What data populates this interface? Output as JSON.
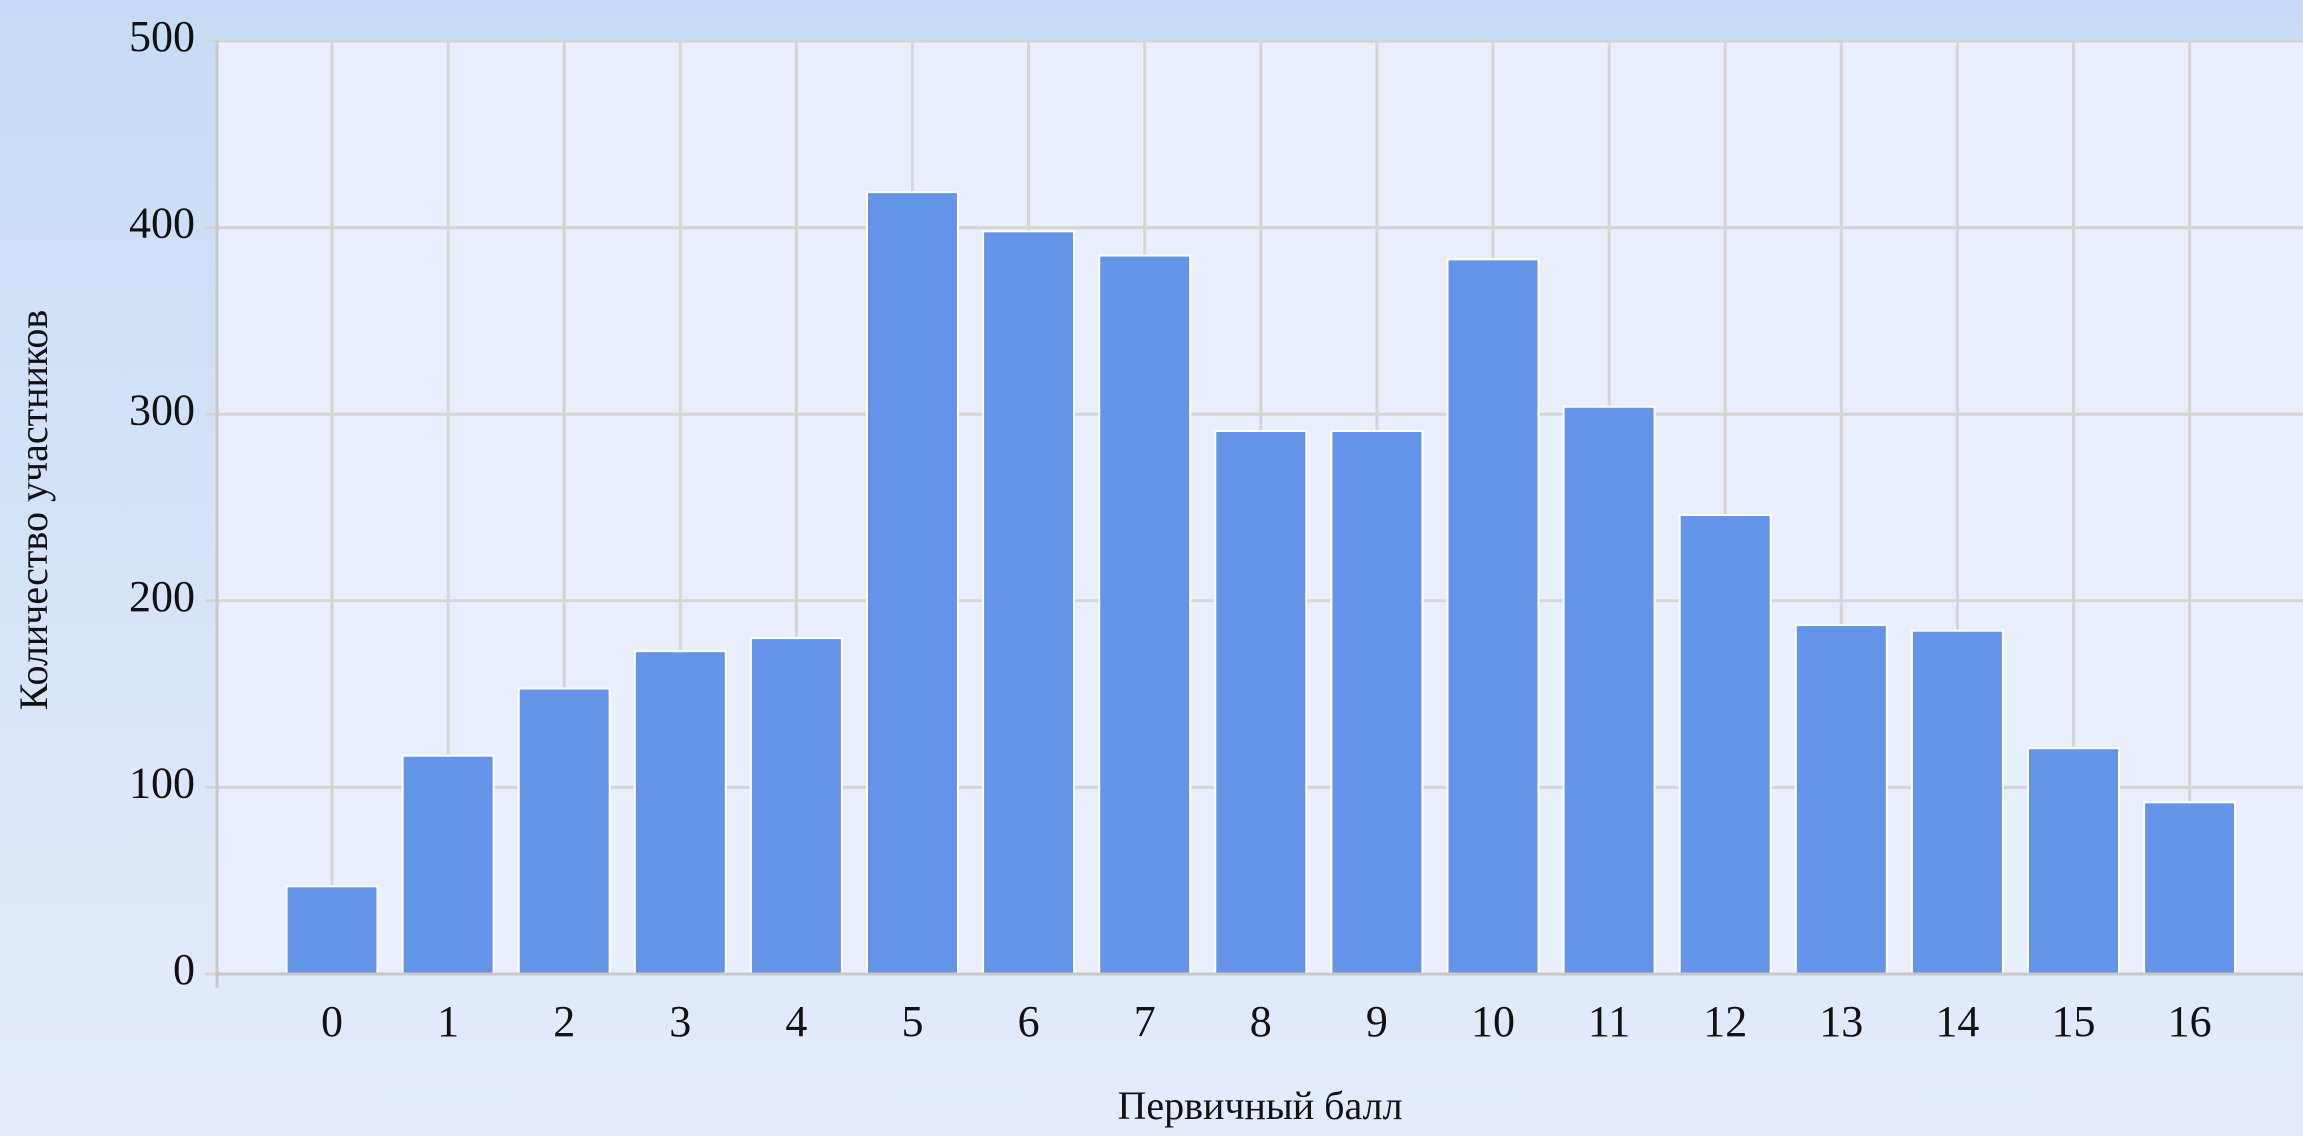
{
  "chart_data": {
    "type": "bar",
    "x_label": "Первичный балл",
    "y_label": "Количество участников",
    "categories": [
      "0",
      "1",
      "2",
      "3",
      "4",
      "5",
      "6",
      "7",
      "8",
      "9",
      "10",
      "11",
      "12",
      "13",
      "14",
      "15",
      "16"
    ],
    "values": [
      47,
      117,
      153,
      173,
      180,
      419,
      398,
      385,
      291,
      291,
      383,
      304,
      246,
      187,
      184,
      121,
      92
    ],
    "color": "#6494e8",
    "ylim": [
      0,
      500
    ],
    "yticks": [
      0,
      100,
      200,
      300,
      400,
      500
    ],
    "grid": true
  }
}
